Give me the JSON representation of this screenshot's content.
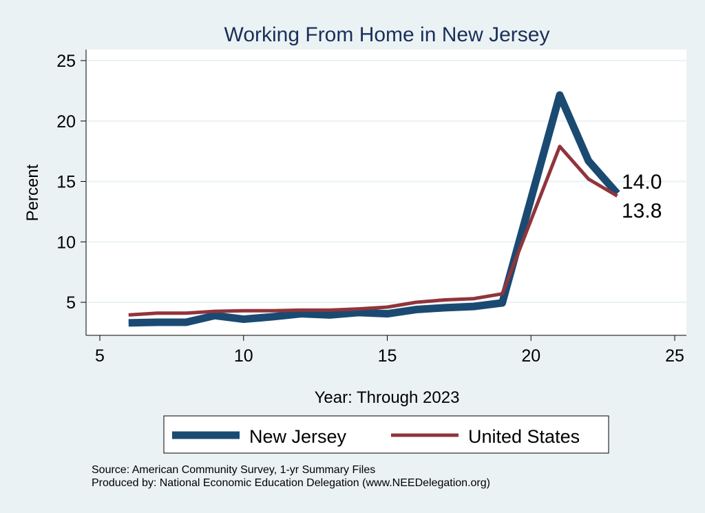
{
  "chart_data": {
    "type": "line",
    "title": "Working From Home in New Jersey",
    "xlabel": "Year: Through 2023",
    "ylabel": "Percent",
    "xlim": [
      5,
      25
    ],
    "ylim": [
      3,
      25.5
    ],
    "xticks": [
      5,
      10,
      15,
      20,
      25
    ],
    "yticks": [
      5,
      10,
      15,
      20,
      25
    ],
    "grid": true,
    "legend_position": "bottom",
    "series": [
      {
        "name": "New Jersey",
        "color": "#1a4a72",
        "x": [
          6,
          7,
          8,
          9,
          10,
          11,
          12,
          13,
          14,
          15,
          16,
          17,
          18,
          19,
          21,
          22,
          23
        ],
        "y": [
          3.3,
          3.35,
          3.35,
          3.9,
          3.6,
          3.8,
          4.05,
          3.95,
          4.15,
          4.05,
          4.4,
          4.55,
          4.65,
          4.95,
          22.15,
          16.7,
          14.0
        ]
      },
      {
        "name": "United States",
        "color": "#90353b",
        "x": [
          6,
          7,
          8,
          9,
          10,
          11,
          12,
          13,
          14,
          15,
          16,
          17,
          18,
          19,
          21,
          22,
          23
        ],
        "y": [
          3.95,
          4.1,
          4.1,
          4.25,
          4.3,
          4.3,
          4.35,
          4.35,
          4.45,
          4.6,
          5.0,
          5.2,
          5.3,
          5.7,
          17.9,
          15.2,
          13.8
        ]
      }
    ],
    "annotations": [
      "14.0",
      "13.8"
    ]
  },
  "notes": {
    "source": "Source: American Community Survey, 1-yr Summary Files",
    "produced": "Produced by: National Economic Education Delegation (www.NEEDelegation.org)"
  }
}
